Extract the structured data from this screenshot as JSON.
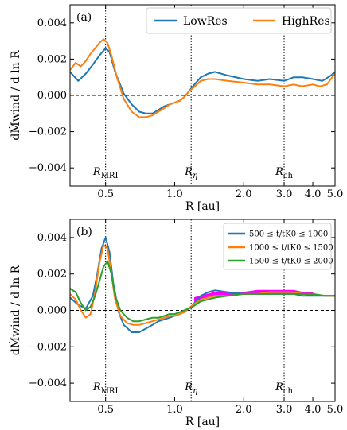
{
  "chart_data": [
    {
      "type": "line",
      "panel_label": "(a)",
      "xlabel": "R [au]",
      "ylabel": "dṀwind / d ln R",
      "xscale": "log",
      "xlim": [
        0.35,
        5.0
      ],
      "ylim": [
        -0.005,
        0.005
      ],
      "xticks": [
        0.5,
        1.0,
        2.0,
        3.0,
        4.0,
        5.0
      ],
      "xtick_labels": [
        "0.5",
        "1.0",
        "2.0",
        "3.0",
        "4.0",
        "5.0"
      ],
      "yticks": [
        -0.004,
        -0.002,
        0.0,
        0.002,
        0.004
      ],
      "ytick_labels": [
        "−0.004",
        "−0.002",
        "0.000",
        "0.002",
        "0.004"
      ],
      "legend_position": "top-right",
      "reference_lines": [
        {
          "label": "RMRI",
          "label_main": "R",
          "label_sub": "MRI",
          "x": 0.5
        },
        {
          "label": "Rη",
          "label_main": "R",
          "label_sub": "η",
          "x": 1.18
        },
        {
          "label": "Rch",
          "label_main": "R",
          "label_sub": "ch",
          "x": 3.0
        }
      ],
      "series": [
        {
          "name": "LowRes",
          "color": "#1f77b4",
          "x": [
            0.35,
            0.38,
            0.41,
            0.44,
            0.47,
            0.5,
            0.52,
            0.55,
            0.6,
            0.65,
            0.7,
            0.75,
            0.8,
            0.85,
            0.9,
            0.95,
            1.0,
            1.05,
            1.1,
            1.15,
            1.2,
            1.3,
            1.4,
            1.5,
            1.7,
            2.0,
            2.3,
            2.6,
            3.0,
            3.3,
            3.6,
            4.0,
            4.4,
            4.8,
            5.0
          ],
          "y": [
            0.0013,
            0.0008,
            0.0012,
            0.0017,
            0.0022,
            0.0026,
            0.0024,
            0.0013,
            0.0001,
            -0.0005,
            -0.0009,
            -0.001,
            -0.001,
            -0.0008,
            -0.0006,
            -0.0005,
            -0.0004,
            -0.0003,
            -0.0001,
            0.0002,
            0.0005,
            0.001,
            0.0012,
            0.0013,
            0.0011,
            0.0009,
            0.0008,
            0.0009,
            0.0008,
            0.001,
            0.001,
            0.0009,
            0.0008,
            0.0011,
            0.0013
          ]
        },
        {
          "name": "HighRes",
          "color": "#ff7f0e",
          "x": [
            0.35,
            0.37,
            0.39,
            0.41,
            0.43,
            0.45,
            0.47,
            0.49,
            0.51,
            0.53,
            0.56,
            0.6,
            0.65,
            0.7,
            0.75,
            0.8,
            0.85,
            0.9,
            0.95,
            1.0,
            1.05,
            1.1,
            1.15,
            1.2,
            1.3,
            1.4,
            1.5,
            1.7,
            2.0,
            2.3,
            2.6,
            3.0,
            3.3,
            3.6,
            4.0,
            4.3,
            4.6,
            5.0
          ],
          "y": [
            0.0014,
            0.0018,
            0.0016,
            0.0019,
            0.0023,
            0.0026,
            0.0029,
            0.0031,
            0.0029,
            0.0022,
            0.001,
            -0.0002,
            -0.0009,
            -0.0012,
            -0.0012,
            -0.0011,
            -0.0009,
            -0.0007,
            -0.0005,
            -0.0004,
            -0.0003,
            -0.0001,
            0.0002,
            0.0004,
            0.0008,
            0.0009,
            0.0009,
            0.0008,
            0.0007,
            0.0006,
            0.0006,
            0.0005,
            0.0006,
            0.0005,
            0.0006,
            0.0005,
            0.0006,
            0.0012
          ]
        }
      ]
    },
    {
      "type": "line",
      "panel_label": "(b)",
      "xlabel": "R [au]",
      "ylabel": "dṀwind / d ln R",
      "xscale": "log",
      "xlim": [
        0.35,
        5.0
      ],
      "ylim": [
        -0.005,
        0.005
      ],
      "xticks": [
        0.5,
        1.0,
        2.0,
        3.0,
        4.0,
        5.0
      ],
      "xtick_labels": [
        "0.5",
        "1.0",
        "2.0",
        "3.0",
        "4.0",
        "5.0"
      ],
      "yticks": [
        -0.004,
        -0.002,
        0.0,
        0.002,
        0.004
      ],
      "ytick_labels": [
        "−0.004",
        "−0.002",
        "0.000",
        "0.002",
        "0.004"
      ],
      "legend_position": "top-right",
      "reference_lines": [
        {
          "label": "RMRI",
          "label_main": "R",
          "label_sub": "MRI",
          "x": 0.5
        },
        {
          "label": "Rη",
          "label_main": "R",
          "label_sub": "η",
          "x": 1.18
        },
        {
          "label": "Rch",
          "label_main": "R",
          "label_sub": "ch",
          "x": 3.0
        }
      ],
      "series": [
        {
          "name": "500 ≤ t/tK0 ≤ 1000",
          "color": "#1f77b4",
          "x": [
            0.35,
            0.38,
            0.41,
            0.44,
            0.46,
            0.48,
            0.5,
            0.52,
            0.54,
            0.57,
            0.6,
            0.65,
            0.7,
            0.75,
            0.8,
            0.85,
            0.9,
            0.95,
            1.0,
            1.05,
            1.1,
            1.15,
            1.2,
            1.3,
            1.4,
            1.5,
            1.7,
            2.0,
            2.3,
            2.6,
            3.0,
            3.3,
            3.6,
            4.0,
            4.5,
            5.0
          ],
          "y": [
            0.0007,
            0.0003,
            0.0001,
            0.0008,
            0.002,
            0.0034,
            0.004,
            0.0032,
            0.0015,
            -0.0001,
            -0.0008,
            -0.0012,
            -0.0012,
            -0.001,
            -0.0008,
            -0.0006,
            -0.0005,
            -0.0004,
            -0.0003,
            -0.0002,
            -0.0001,
            0.0001,
            0.0003,
            0.0008,
            0.001,
            0.0011,
            0.001,
            0.0009,
            0.0009,
            0.0009,
            0.0009,
            0.0009,
            0.0008,
            0.0008,
            0.0008,
            0.0008
          ]
        },
        {
          "name": "1000 ≤ t/tK0 ≤ 1500",
          "color": "#ff7f0e",
          "x": [
            0.35,
            0.37,
            0.39,
            0.41,
            0.43,
            0.45,
            0.47,
            0.49,
            0.51,
            0.53,
            0.55,
            0.58,
            0.62,
            0.66,
            0.7,
            0.75,
            0.8,
            0.85,
            0.9,
            0.95,
            1.0,
            1.05,
            1.1,
            1.15,
            1.2,
            1.3,
            1.4,
            1.5,
            1.7,
            2.0,
            2.3,
            2.6,
            3.0,
            3.3,
            3.6,
            4.0,
            4.5,
            5.0
          ],
          "y": [
            0.0009,
            0.0006,
            0.0,
            -0.0004,
            -0.0002,
            0.001,
            0.0026,
            0.0036,
            0.0034,
            0.002,
            0.0006,
            -0.0003,
            -0.0007,
            -0.0008,
            -0.0008,
            -0.0007,
            -0.0006,
            -0.0005,
            -0.0004,
            -0.0003,
            -0.0003,
            -0.0002,
            -0.0001,
            0.0001,
            0.0003,
            0.0006,
            0.0007,
            0.0008,
            0.0008,
            0.0009,
            0.0009,
            0.001,
            0.001,
            0.001,
            0.0009,
            0.0009,
            0.0008,
            0.0008
          ]
        },
        {
          "name": "1500 ≤ t/tK0 ≤ 2000",
          "color": "#2ca02c",
          "x": [
            0.35,
            0.37,
            0.39,
            0.41,
            0.43,
            0.45,
            0.47,
            0.49,
            0.51,
            0.53,
            0.55,
            0.58,
            0.62,
            0.66,
            0.7,
            0.75,
            0.8,
            0.85,
            0.9,
            0.95,
            1.0,
            1.05,
            1.1,
            1.15,
            1.2,
            1.3,
            1.4,
            1.5,
            1.7,
            2.0,
            2.3,
            2.6,
            3.0,
            3.3,
            3.6,
            4.0,
            4.5,
            5.0
          ],
          "y": [
            0.0012,
            0.001,
            0.0004,
            0.0,
            0.0002,
            0.0008,
            0.0016,
            0.0024,
            0.0027,
            0.002,
            0.0008,
            0.0,
            -0.0004,
            -0.0006,
            -0.0006,
            -0.0005,
            -0.0004,
            -0.0004,
            -0.0003,
            -0.0002,
            -0.0002,
            -0.0001,
            0.0,
            0.0001,
            0.0002,
            0.0005,
            0.0006,
            0.0007,
            0.0008,
            0.0009,
            0.0009,
            0.0009,
            0.0009,
            0.0009,
            0.0009,
            0.0009,
            0.0008,
            0.0008
          ]
        }
      ],
      "highlight_band": {
        "color": "#ff00ff",
        "x": [
          1.22,
          1.3,
          1.4,
          1.5,
          1.7,
          2.0,
          2.3,
          2.6,
          3.0,
          3.3,
          3.6,
          4.0
        ],
        "y_low": [
          0.0005,
          0.0006,
          0.0007,
          0.0008,
          0.0008,
          0.0009,
          0.0009,
          0.0009,
          0.0009,
          0.0009,
          0.0009,
          0.0008
        ],
        "y_high": [
          0.0007,
          0.0008,
          0.0009,
          0.001,
          0.001,
          0.001,
          0.0011,
          0.0011,
          0.0011,
          0.0011,
          0.001,
          0.001
        ]
      }
    }
  ]
}
